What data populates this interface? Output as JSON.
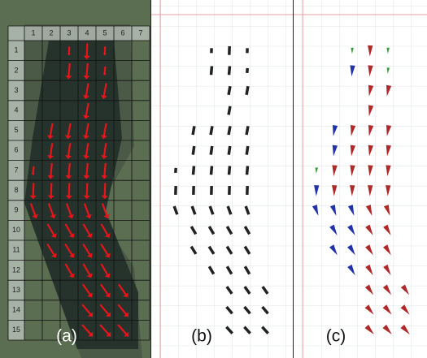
{
  "panels": [
    {
      "label": "(a)"
    },
    {
      "label": "(b)"
    },
    {
      "label": "(c)"
    }
  ],
  "grid": {
    "columns": [
      "1",
      "2",
      "3",
      "4",
      "5",
      "6",
      "7"
    ],
    "rows": [
      "1",
      "2",
      "3",
      "4",
      "5",
      "6",
      "7",
      "8",
      "9",
      "10",
      "11",
      "12",
      "13",
      "14",
      "15"
    ]
  }
}
